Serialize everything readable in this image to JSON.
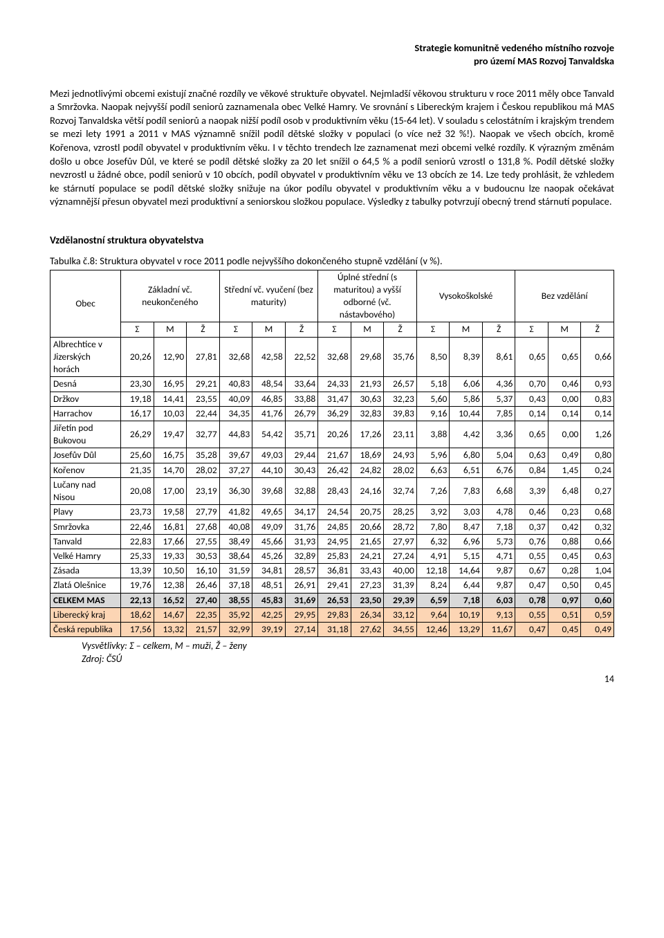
{
  "header": {
    "line1": "Strategie komunitně vedeného místního rozvoje",
    "line2": "pro území MAS Rozvoj Tanvaldska"
  },
  "paragraph": "Mezi jednotlivými obcemi existují značné rozdíly ve věkové struktuře obyvatel. Nejmladší věkovou strukturu v roce 2011 měly obce Tanvald a Smržovka. Naopak nejvyšší podíl seniorů zaznamenala obec Velké Hamry. Ve srovnání s Libereckým krajem i Českou republikou má MAS Rozvoj Tanvaldska větší podíl seniorů a naopak nižší podíl osob v produktivním věku (15-64 let). V souladu s celostátním i krajským trendem se mezi lety 1991 a 2011 v MAS významně snížil podíl dětské složky v populaci (o více než 32 %!). Naopak ve všech obcích, kromě Kořenova, vzrostl podíl obyvatel v produktivním věku. I v těchto trendech lze zaznamenat mezi obcemi velké rozdíly. K výrazným změnám došlo u obce Josefův Důl, ve které se podíl dětské složky za 20 let snížil o 64,5 % a podíl seniorů vzrostl o 131,8 %. Podíl dětské složky nevzrostl u žádné obce, podíl seniorů v 10 obcích, podíl obyvatel v produktivním věku ve 13 obcích ze 14. Lze tedy prohlásit, že vzhledem ke stárnutí populace se podíl dětské složky snižuje na úkor podílu obyvatel v produktivním věku a v budoucnu lze naopak očekávat významnější přesun obyvatel mezi produktivní a seniorskou složkou populace. Výsledky z tabulky potvrzují obecný trend stárnutí populace.",
  "section_heading": "Vzdělanostní struktura obyvatelstva",
  "table_caption": "Tabulka č.8: Struktura obyvatel v roce 2011 podle nejvyššího dokončeného stupně vzdělání (v %).",
  "table": {
    "col_obec": "Obec",
    "groups": [
      "Základní vč. neukončeného",
      "Střední vč. vyučení (bez maturity)",
      "Úplné střední (s maturitou) a vyšší odborné (vč. nástavbového)",
      "Vysokoškolské",
      "Bez vzdělání"
    ],
    "subcols": [
      "Σ",
      "M",
      "Ž"
    ],
    "rows": [
      {
        "label": "Albrechtice v Jizerských horách",
        "v": [
          "20,26",
          "12,90",
          "27,81",
          "32,68",
          "42,58",
          "22,52",
          "32,68",
          "29,68",
          "35,76",
          "8,50",
          "8,39",
          "8,61",
          "0,65",
          "0,65",
          "0,66"
        ]
      },
      {
        "label": "Desná",
        "v": [
          "23,30",
          "16,95",
          "29,21",
          "40,83",
          "48,54",
          "33,64",
          "24,33",
          "21,93",
          "26,57",
          "5,18",
          "6,06",
          "4,36",
          "0,70",
          "0,46",
          "0,93"
        ]
      },
      {
        "label": "Držkov",
        "v": [
          "19,18",
          "14,41",
          "23,55",
          "40,09",
          "46,85",
          "33,88",
          "31,47",
          "30,63",
          "32,23",
          "5,60",
          "5,86",
          "5,37",
          "0,43",
          "0,00",
          "0,83"
        ]
      },
      {
        "label": "Harrachov",
        "v": [
          "16,17",
          "10,03",
          "22,44",
          "34,35",
          "41,76",
          "26,79",
          "36,29",
          "32,83",
          "39,83",
          "9,16",
          "10,44",
          "7,85",
          "0,14",
          "0,14",
          "0,14"
        ]
      },
      {
        "label": "Jiřetín pod Bukovou",
        "v": [
          "26,29",
          "19,47",
          "32,77",
          "44,83",
          "54,42",
          "35,71",
          "20,26",
          "17,26",
          "23,11",
          "3,88",
          "4,42",
          "3,36",
          "0,65",
          "0,00",
          "1,26"
        ]
      },
      {
        "label": "Josefův Důl",
        "v": [
          "25,60",
          "16,75",
          "35,28",
          "39,67",
          "49,03",
          "29,44",
          "21,67",
          "18,69",
          "24,93",
          "5,96",
          "6,80",
          "5,04",
          "0,63",
          "0,49",
          "0,80"
        ]
      },
      {
        "label": "Kořenov",
        "v": [
          "21,35",
          "14,70",
          "28,02",
          "37,27",
          "44,10",
          "30,43",
          "26,42",
          "24,82",
          "28,02",
          "6,63",
          "6,51",
          "6,76",
          "0,84",
          "1,45",
          "0,24"
        ]
      },
      {
        "label": "Lučany nad Nisou",
        "v": [
          "20,08",
          "17,00",
          "23,19",
          "36,30",
          "39,68",
          "32,88",
          "28,43",
          "24,16",
          "32,74",
          "7,26",
          "7,83",
          "6,68",
          "3,39",
          "6,48",
          "0,27"
        ]
      },
      {
        "label": "Plavy",
        "v": [
          "23,73",
          "19,58",
          "27,79",
          "41,82",
          "49,65",
          "34,17",
          "24,54",
          "20,75",
          "28,25",
          "3,92",
          "3,03",
          "4,78",
          "0,46",
          "0,23",
          "0,68"
        ]
      },
      {
        "label": "Smržovka",
        "v": [
          "22,46",
          "16,81",
          "27,68",
          "40,08",
          "49,09",
          "31,76",
          "24,85",
          "20,66",
          "28,72",
          "7,80",
          "8,47",
          "7,18",
          "0,37",
          "0,42",
          "0,32"
        ]
      },
      {
        "label": "Tanvald",
        "v": [
          "22,83",
          "17,66",
          "27,55",
          "38,49",
          "45,66",
          "31,93",
          "24,95",
          "21,65",
          "27,97",
          "6,32",
          "6,96",
          "5,73",
          "0,76",
          "0,88",
          "0,66"
        ]
      },
      {
        "label": "Velké Hamry",
        "v": [
          "25,33",
          "19,33",
          "30,53",
          "38,64",
          "45,26",
          "32,89",
          "25,83",
          "24,21",
          "27,24",
          "4,91",
          "5,15",
          "4,71",
          "0,55",
          "0,45",
          "0,63"
        ]
      },
      {
        "label": "Zásada",
        "v": [
          "13,39",
          "10,50",
          "16,10",
          "31,59",
          "34,81",
          "28,57",
          "36,81",
          "33,43",
          "40,00",
          "12,18",
          "14,64",
          "9,87",
          "0,67",
          "0,28",
          "1,04"
        ]
      },
      {
        "label": "Zlatá Olešnice",
        "v": [
          "19,76",
          "12,38",
          "26,46",
          "37,18",
          "48,51",
          "26,91",
          "29,41",
          "27,23",
          "31,39",
          "8,24",
          "6,44",
          "9,87",
          "0,47",
          "0,50",
          "0,45"
        ]
      }
    ],
    "summary_rows": [
      {
        "label": "CELKEM MAS",
        "class": "row-celkem",
        "v": [
          "22,13",
          "16,52",
          "27,40",
          "38,55",
          "45,83",
          "31,69",
          "26,53",
          "23,50",
          "29,39",
          "6,59",
          "7,18",
          "6,03",
          "0,78",
          "0,97",
          "0,60"
        ]
      },
      {
        "label": "Liberecký kraj",
        "class": "row-liberec",
        "v": [
          "18,62",
          "14,67",
          "22,35",
          "35,92",
          "42,25",
          "29,95",
          "29,83",
          "26,34",
          "33,12",
          "9,64",
          "10,19",
          "9,13",
          "0,55",
          "0,51",
          "0,59"
        ]
      },
      {
        "label": "Česká republika",
        "class": "row-cr",
        "v": [
          "17,56",
          "13,32",
          "21,57",
          "32,99",
          "39,19",
          "27,14",
          "31,18",
          "27,62",
          "34,55",
          "12,46",
          "13,29",
          "11,67",
          "0,47",
          "0,45",
          "0,49"
        ]
      }
    ]
  },
  "footnote1": "Vysvětlivky: Σ – celkem, M – muži, Ž – ženy",
  "footnote2": "Zdroj: ČSÚ",
  "page_number": "14"
}
